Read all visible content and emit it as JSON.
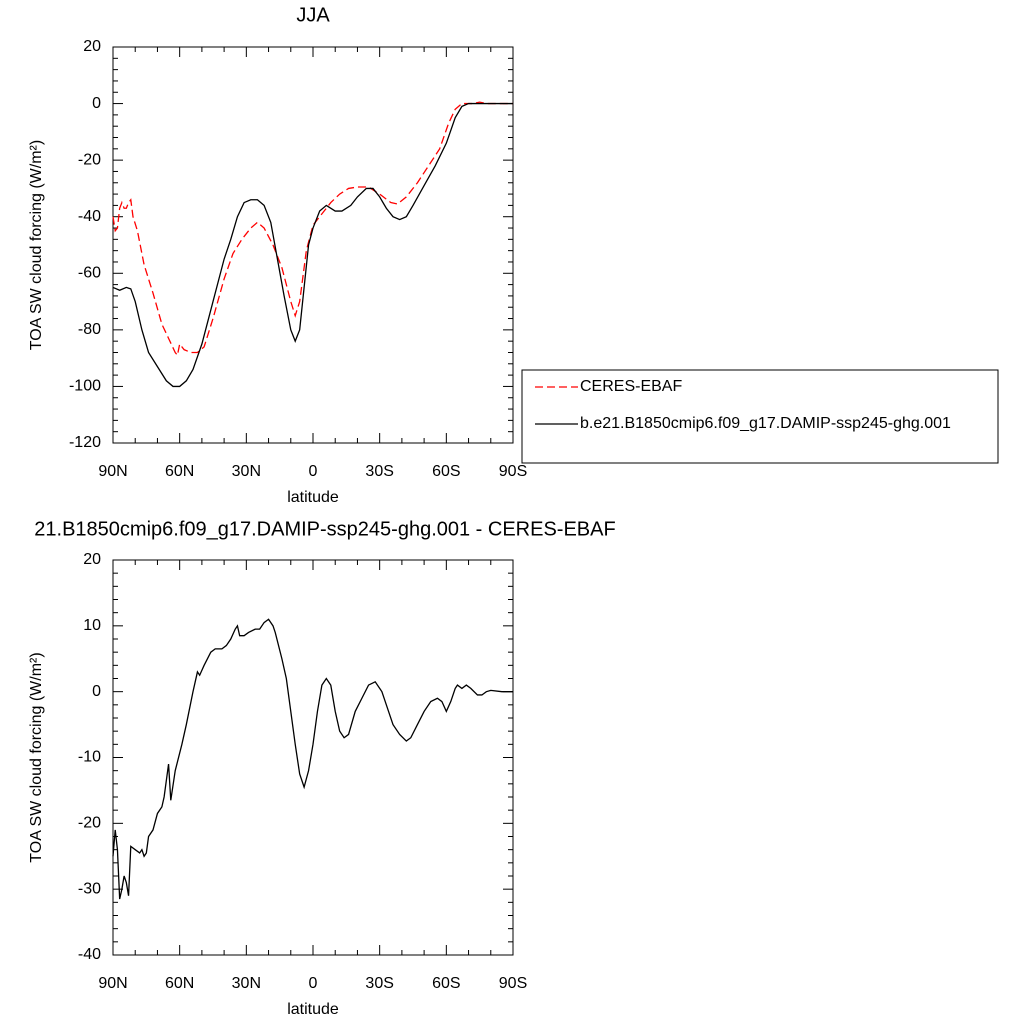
{
  "chart_data": [
    {
      "type": "line",
      "title": "JJA",
      "x_label": "latitude",
      "y_label": "TOA SW cloud forcing (W/m²)",
      "xlim": [
        90,
        -90
      ],
      "ylim": [
        -120,
        20
      ],
      "xticks": [
        {
          "value": 90,
          "label": "90N"
        },
        {
          "value": 60,
          "label": "60N"
        },
        {
          "value": 30,
          "label": "30N"
        },
        0,
        {
          "value": -30,
          "label": "30S"
        },
        {
          "value": -60,
          "label": "60S"
        },
        {
          "value": -90,
          "label": "90S"
        }
      ],
      "yticks": [
        -120,
        -100,
        -80,
        -60,
        -40,
        -20,
        0,
        20
      ],
      "legend": "right",
      "series": [
        {
          "name": "CERES-EBAF",
          "color": "#ff0000",
          "dashed": true,
          "x": [
            90,
            89,
            88,
            87,
            86,
            85,
            84,
            83,
            82,
            81,
            79,
            76,
            72,
            68,
            65,
            62,
            61,
            60,
            58,
            55,
            52,
            49,
            45,
            40,
            36,
            32,
            28,
            25,
            22,
            18,
            14,
            10,
            8,
            6,
            3,
            0,
            -4,
            -8,
            -12,
            -16,
            -20,
            -25,
            -30,
            -35,
            -38,
            -42,
            -47,
            -52,
            -57,
            -61,
            -64,
            -67,
            -72,
            -75,
            -78,
            -85,
            -90
          ],
          "values": [
            -40,
            -45,
            -44,
            -37,
            -35,
            -37,
            -37,
            -35,
            -34,
            -40,
            -45,
            -57,
            -67,
            -78,
            -83,
            -88,
            -89,
            -85,
            -87,
            -88,
            -88,
            -86,
            -76,
            -62,
            -53,
            -48,
            -44,
            -42,
            -44,
            -50,
            -58,
            -70,
            -75,
            -70,
            -52,
            -43,
            -39,
            -35,
            -32,
            -30,
            -29.5,
            -29.5,
            -32,
            -35,
            -35.5,
            -33,
            -28,
            -22,
            -16,
            -7,
            -2,
            0,
            0,
            0.5,
            0,
            0,
            0
          ]
        },
        {
          "name": "b.e21.B1850cmip6.f09_g17.DAMIP-ssp245-ghg.001",
          "color": "#000000",
          "dashed": false,
          "x": [
            90,
            87,
            84,
            82,
            80,
            77,
            74,
            70,
            66,
            63,
            60,
            57,
            54,
            50,
            45,
            40,
            37,
            34,
            31,
            28,
            25,
            22,
            19,
            16,
            13,
            10,
            8,
            6,
            4,
            2,
            0,
            -3,
            -6,
            -10,
            -13,
            -17,
            -20,
            -24,
            -27,
            -30,
            -33,
            -36,
            -39,
            -42,
            -45,
            -50,
            -55,
            -60,
            -64,
            -67,
            -70,
            -75,
            -80,
            -85,
            -90
          ],
          "values": [
            -65,
            -66,
            -65,
            -65.5,
            -70,
            -80,
            -88,
            -93,
            -98,
            -100,
            -100,
            -98,
            -94,
            -85,
            -70,
            -55,
            -48,
            -40,
            -35,
            -34,
            -34,
            -36,
            -42,
            -55,
            -68,
            -80,
            -84,
            -80,
            -65,
            -50,
            -44,
            -38,
            -36,
            -38,
            -38,
            -36,
            -33,
            -30,
            -30,
            -33,
            -37,
            -40,
            -41,
            -40,
            -36,
            -29,
            -22,
            -14,
            -5,
            -1,
            0,
            0,
            0,
            0,
            0
          ]
        }
      ]
    },
    {
      "type": "line",
      "title": "21.B1850cmip6.f09_g17.DAMIP-ssp245-ghg.001 - CERES-EBAF",
      "x_label": "latitude",
      "y_label": "TOA SW cloud forcing (W/m²)",
      "xlim": [
        90,
        -90
      ],
      "ylim": [
        -40,
        20
      ],
      "xticks": [
        {
          "value": 90,
          "label": "90N"
        },
        {
          "value": 60,
          "label": "60N"
        },
        {
          "value": 30,
          "label": "30N"
        },
        0,
        {
          "value": -30,
          "label": "30S"
        },
        {
          "value": -60,
          "label": "60S"
        },
        {
          "value": -90,
          "label": "90S"
        }
      ],
      "yticks": [
        -40,
        -30,
        -20,
        -10,
        0,
        10,
        20
      ],
      "series": [
        {
          "color": "#000000",
          "dashed": false,
          "x": [
            90,
            89,
            88,
            87,
            86,
            85,
            84,
            83,
            82,
            80,
            78,
            77,
            76,
            75,
            74,
            72,
            70,
            68,
            67,
            65,
            64,
            62,
            59,
            57,
            54,
            52,
            51,
            49,
            46,
            44,
            41,
            39,
            37,
            35,
            34,
            33,
            31,
            29,
            26,
            24,
            22,
            20,
            18,
            17,
            14,
            12,
            10,
            8,
            6,
            4,
            2,
            0,
            -2,
            -4,
            -6,
            -8,
            -10,
            -12,
            -14,
            -16,
            -19,
            -22,
            -25,
            -28,
            -31,
            -34,
            -36,
            -39,
            -42,
            -44,
            -47,
            -50,
            -53,
            -56,
            -58,
            -60,
            -62,
            -64,
            -65,
            -67,
            -69,
            -71,
            -74,
            -76,
            -78,
            -80,
            -85,
            -90
          ],
          "values": [
            -25,
            -21,
            -24,
            -31.5,
            -30,
            -28,
            -29,
            -31,
            -23.5,
            -24,
            -24.5,
            -24,
            -25,
            -24.5,
            -22,
            -21,
            -18.5,
            -17.5,
            -16,
            -11,
            -16.5,
            -12,
            -8,
            -5,
            0,
            3,
            2.5,
            4,
            6,
            6.5,
            6.5,
            7,
            8,
            9.5,
            10,
            8.5,
            8.5,
            9,
            9.5,
            9.5,
            10.5,
            11,
            10,
            9,
            5,
            2,
            -3,
            -8,
            -12.5,
            -14.5,
            -12,
            -8,
            -3,
            1,
            2,
            1,
            -3,
            -6,
            -7,
            -6.5,
            -3,
            -1,
            1,
            1.5,
            0,
            -3,
            -5,
            -6.5,
            -7.5,
            -7,
            -5,
            -3,
            -1.5,
            -1,
            -1.5,
            -3,
            -1.5,
            0.5,
            1,
            0.5,
            1,
            0.5,
            -0.5,
            -0.5,
            0,
            0.2,
            0,
            0
          ]
        }
      ]
    }
  ]
}
